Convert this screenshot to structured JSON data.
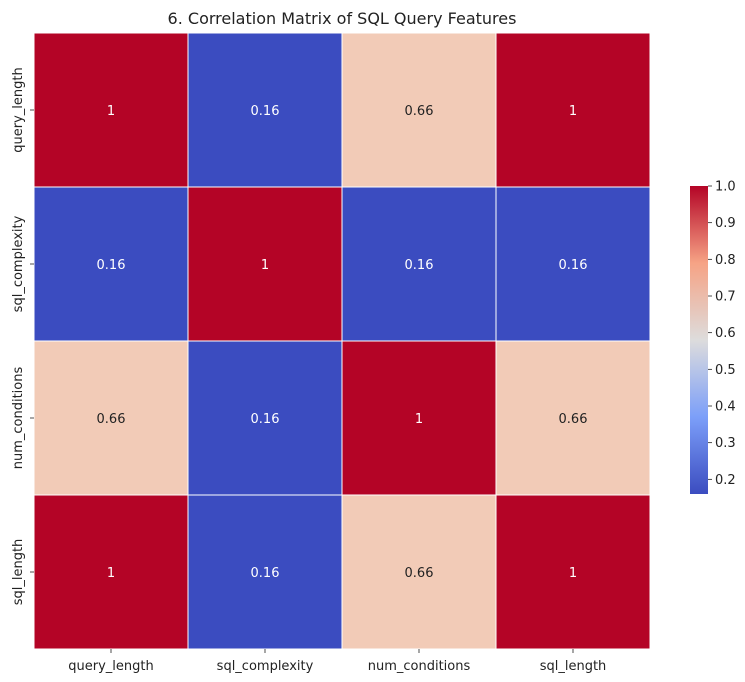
{
  "chart_data": {
    "type": "heatmap",
    "title": "6. Correlation Matrix of SQL Query Features",
    "xlabel": "",
    "ylabel": "",
    "x_categories": [
      "query_length",
      "sql_complexity",
      "num_conditions",
      "sql_length"
    ],
    "y_categories": [
      "query_length",
      "sql_complexity",
      "num_conditions",
      "sql_length"
    ],
    "values": [
      [
        1,
        0.16,
        0.66,
        1
      ],
      [
        0.16,
        1,
        0.16,
        0.16
      ],
      [
        0.66,
        0.16,
        1,
        0.66
      ],
      [
        1,
        0.16,
        0.66,
        1
      ]
    ],
    "value_labels": [
      [
        "1",
        "0.16",
        "0.66",
        "1"
      ],
      [
        "0.16",
        "1",
        "0.16",
        "0.16"
      ],
      [
        "0.66",
        "0.16",
        "1",
        "0.66"
      ],
      [
        "1",
        "0.16",
        "0.66",
        "1"
      ]
    ],
    "colormap": "coolwarm",
    "colors": {
      "low": "#3b4cc0",
      "mid": "#dddcdc",
      "mid_high": "#f2cbb7",
      "high": "#b40426",
      "cell_border": "#ffffff",
      "text_dark": "#222222",
      "text_light": "#ffffff"
    },
    "colorbar": {
      "range": [
        0.16,
        1.0
      ],
      "ticks": [
        1.0,
        0.9,
        0.8,
        0.7,
        0.6,
        0.5,
        0.4,
        0.3,
        0.2
      ],
      "tick_labels": [
        "1.0",
        "0.9",
        "0.8",
        "0.7",
        "0.6",
        "0.5",
        "0.4",
        "0.3",
        "0.2"
      ]
    },
    "grid": false
  }
}
